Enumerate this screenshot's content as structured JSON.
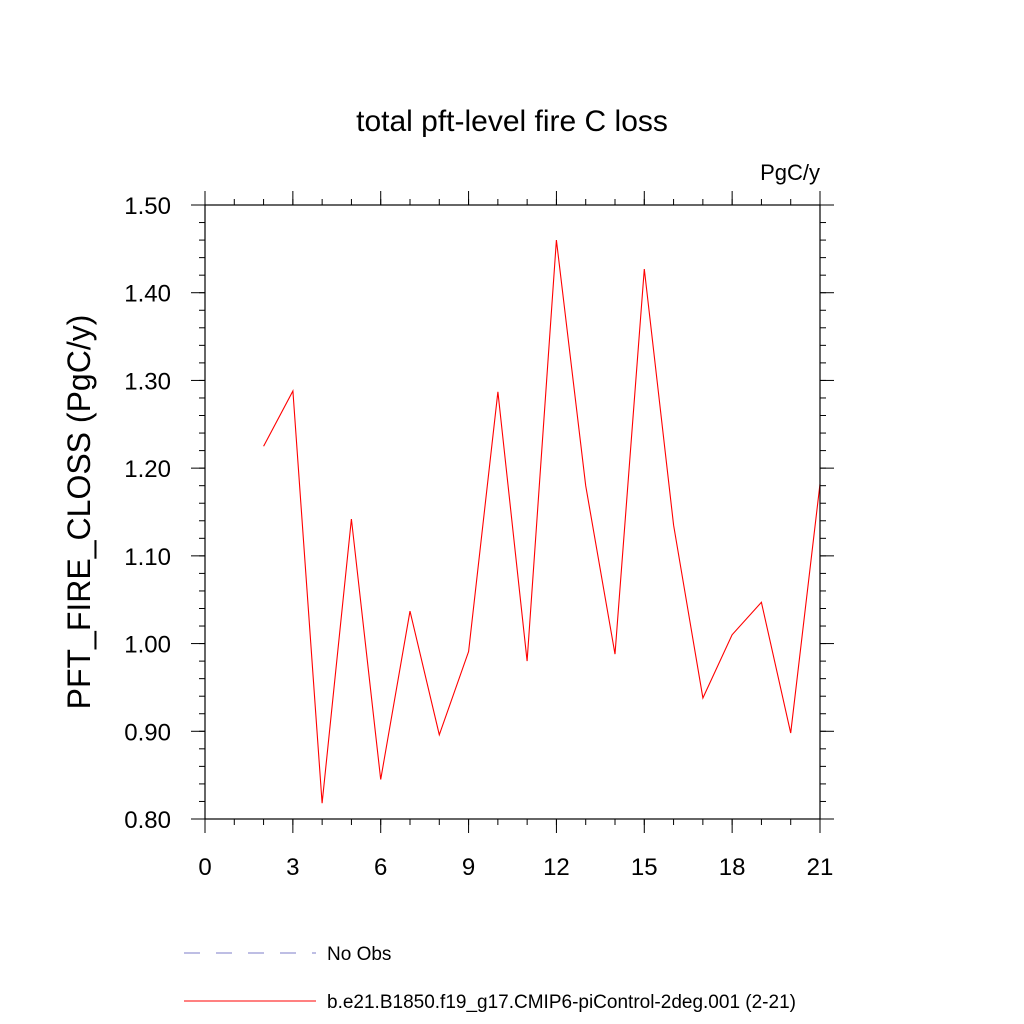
{
  "chart_data": {
    "type": "line",
    "title": "total pft-level fire C loss",
    "units": "PgC/y",
    "xlabel": "",
    "ylabel": "PFT_FIRE_CLOSS  (PgC/y)",
    "xlim": [
      0,
      21
    ],
    "ylim": [
      0.8,
      1.5
    ],
    "x_ticks": [
      0,
      3,
      6,
      9,
      12,
      15,
      18,
      21
    ],
    "x_tick_labels": [
      "0",
      "3",
      "6",
      "9",
      "12",
      "15",
      "18",
      "21"
    ],
    "y_ticks": [
      0.8,
      0.9,
      1.0,
      1.1,
      1.2,
      1.3,
      1.4,
      1.5
    ],
    "y_tick_labels": [
      "0.80",
      "0.90",
      "1.00",
      "1.10",
      "1.20",
      "1.30",
      "1.40",
      "1.50"
    ],
    "series": [
      {
        "name": "b.e21.B1850.f19_g17.CMIP6-piControl-2deg.001 (2-21)",
        "color": "#ff0000",
        "x": [
          2,
          3,
          4,
          5,
          6,
          7,
          8,
          9,
          10,
          11,
          12,
          13,
          14,
          15,
          16,
          17,
          18,
          19,
          20,
          21
        ],
        "values": [
          1.225,
          1.288,
          0.818,
          1.142,
          0.845,
          1.037,
          0.896,
          0.991,
          1.287,
          0.98,
          1.46,
          1.18,
          0.988,
          1.427,
          1.135,
          0.938,
          1.01,
          1.047,
          0.898,
          1.182
        ]
      }
    ],
    "legend": [
      {
        "label": "No Obs",
        "color": "#7d7dc8",
        "style": "dashed"
      },
      {
        "label": "b.e21.B1850.f19_g17.CMIP6-piControl-2deg.001 (2-21)",
        "color": "#ff0000",
        "style": "solid"
      }
    ]
  }
}
